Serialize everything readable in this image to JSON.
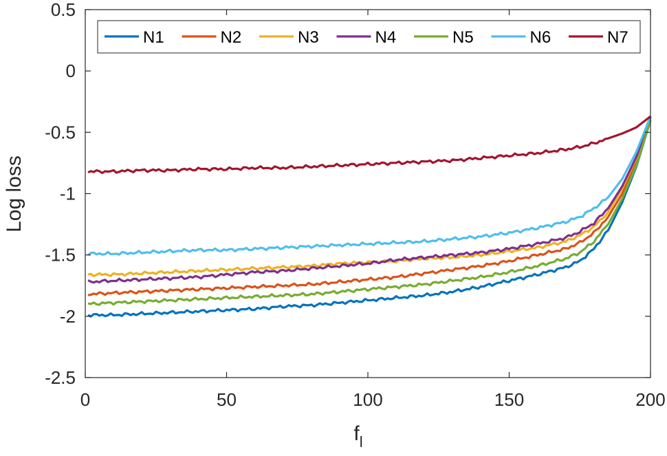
{
  "chart_data": {
    "type": "line",
    "xlabel": "f",
    "xlabel_subscript": "l",
    "ylabel": "Log loss",
    "xlim": [
      0,
      200
    ],
    "ylim": [
      -2.5,
      0.5
    ],
    "xticks": [
      0,
      50,
      100,
      150,
      200
    ],
    "xtick_labels": [
      "0",
      "50",
      "100",
      "150",
      "200"
    ],
    "yticks": [
      0.5,
      0,
      -0.5,
      -1,
      -1.5,
      -2,
      -2.5
    ],
    "ytick_labels": [
      "0.5",
      "0",
      "-0.5",
      "-1",
      "-1.5",
      "-2",
      "-2.5"
    ],
    "grid": false,
    "legend": "top, horizontal",
    "x": [
      1,
      10,
      20,
      30,
      40,
      50,
      60,
      70,
      80,
      90,
      100,
      110,
      120,
      130,
      140,
      150,
      160,
      170,
      175,
      180,
      185,
      190,
      195,
      200
    ],
    "series": [
      {
        "name": "N1",
        "color": "#0072BD",
        "values": [
          -1.99,
          -1.99,
          -1.98,
          -1.97,
          -1.96,
          -1.95,
          -1.94,
          -1.92,
          -1.91,
          -1.89,
          -1.87,
          -1.85,
          -1.83,
          -1.8,
          -1.76,
          -1.71,
          -1.66,
          -1.6,
          -1.55,
          -1.45,
          -1.3,
          -1.07,
          -0.78,
          -0.4
        ]
      },
      {
        "name": "N2",
        "color": "#D95319",
        "values": [
          -1.82,
          -1.81,
          -1.8,
          -1.79,
          -1.78,
          -1.77,
          -1.76,
          -1.75,
          -1.74,
          -1.72,
          -1.7,
          -1.68,
          -1.65,
          -1.62,
          -1.59,
          -1.55,
          -1.5,
          -1.45,
          -1.4,
          -1.32,
          -1.19,
          -1.0,
          -0.74,
          -0.38
        ]
      },
      {
        "name": "N3",
        "color": "#EDB120",
        "values": [
          -1.66,
          -1.66,
          -1.65,
          -1.64,
          -1.63,
          -1.62,
          -1.61,
          -1.6,
          -1.59,
          -1.57,
          -1.56,
          -1.55,
          -1.53,
          -1.52,
          -1.5,
          -1.47,
          -1.44,
          -1.39,
          -1.34,
          -1.27,
          -1.15,
          -0.96,
          -0.71,
          -0.37
        ]
      },
      {
        "name": "N4",
        "color": "#7E2F8E",
        "values": [
          -1.72,
          -1.71,
          -1.7,
          -1.69,
          -1.68,
          -1.66,
          -1.64,
          -1.63,
          -1.61,
          -1.59,
          -1.57,
          -1.54,
          -1.52,
          -1.5,
          -1.48,
          -1.45,
          -1.41,
          -1.36,
          -1.31,
          -1.24,
          -1.12,
          -0.94,
          -0.7,
          -0.37
        ]
      },
      {
        "name": "N5",
        "color": "#77AC30",
        "values": [
          -1.9,
          -1.89,
          -1.88,
          -1.87,
          -1.86,
          -1.85,
          -1.84,
          -1.83,
          -1.82,
          -1.8,
          -1.78,
          -1.76,
          -1.74,
          -1.71,
          -1.68,
          -1.64,
          -1.59,
          -1.53,
          -1.48,
          -1.39,
          -1.25,
          -1.04,
          -0.77,
          -0.4
        ]
      },
      {
        "name": "N6",
        "color": "#4DBEEE",
        "values": [
          -1.49,
          -1.49,
          -1.48,
          -1.47,
          -1.46,
          -1.46,
          -1.45,
          -1.44,
          -1.43,
          -1.42,
          -1.41,
          -1.4,
          -1.39,
          -1.37,
          -1.35,
          -1.32,
          -1.28,
          -1.23,
          -1.19,
          -1.12,
          -1.03,
          -0.88,
          -0.66,
          -0.37
        ]
      },
      {
        "name": "N7",
        "color": "#A2142F",
        "values": [
          -0.82,
          -0.82,
          -0.81,
          -0.81,
          -0.8,
          -0.8,
          -0.79,
          -0.79,
          -0.78,
          -0.77,
          -0.76,
          -0.75,
          -0.74,
          -0.73,
          -0.71,
          -0.69,
          -0.67,
          -0.64,
          -0.62,
          -0.59,
          -0.55,
          -0.51,
          -0.46,
          -0.37
        ]
      }
    ]
  }
}
